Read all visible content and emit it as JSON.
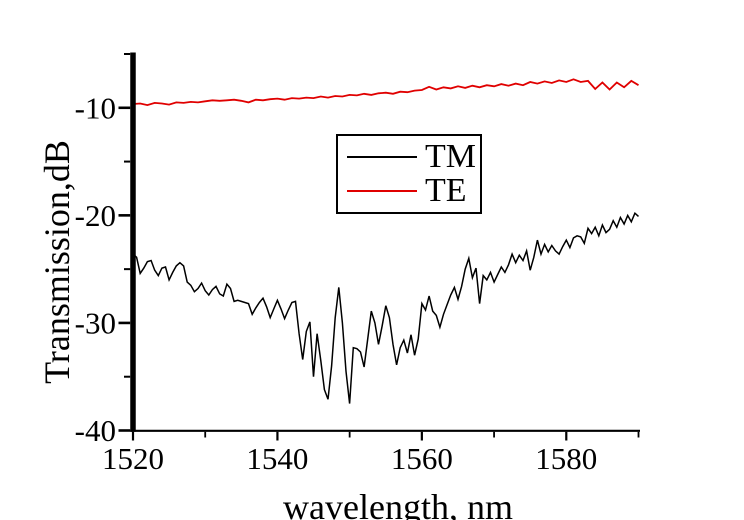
{
  "figure": {
    "background": "#ffffff",
    "axis_color": "#000000",
    "text_color": "#000000"
  },
  "chart_data": {
    "type": "line",
    "title": "",
    "xlabel": "wavelength, nm",
    "ylabel": "Transmission,dB",
    "xlim": [
      1520,
      1590
    ],
    "ylim": [
      -40,
      -5
    ],
    "grid": false,
    "x_major_ticks": [
      1520,
      1540,
      1560,
      1580
    ],
    "x_minor_ticks": [
      1530,
      1550,
      1570,
      1590
    ],
    "x_tick_labels": [
      "1520",
      "1540",
      "1560",
      "1580"
    ],
    "y_major_ticks": [
      -10,
      -20,
      -30,
      -40
    ],
    "y_minor_ticks": [
      -5,
      -15,
      -25,
      -35
    ],
    "y_tick_labels": [
      "-10",
      "-20",
      "-30",
      "-40"
    ],
    "legend": {
      "position": "inside-upper-middle",
      "border_color": "#000000",
      "entries": [
        "TM",
        "TE"
      ]
    },
    "series": [
      {
        "name": "TM",
        "color": "#000000",
        "x_start": 1520,
        "x_step": 0.5,
        "values": [
          -23.6,
          -23.9,
          -25.4,
          -24.9,
          -24.3,
          -24.2,
          -25.1,
          -25.6,
          -24.9,
          -24.8,
          -26.0,
          -25.3,
          -24.7,
          -24.4,
          -24.7,
          -26.2,
          -26.5,
          -27.1,
          -26.8,
          -26.3,
          -27.0,
          -27.4,
          -26.9,
          -26.6,
          -27.3,
          -27.5,
          -26.4,
          -26.8,
          -28.0,
          -27.9,
          -28.0,
          -28.1,
          -28.2,
          -29.2,
          -28.6,
          -28.1,
          -27.7,
          -28.5,
          -29.5,
          -28.7,
          -27.9,
          -28.7,
          -29.6,
          -28.8,
          -28.1,
          -28.0,
          -31.0,
          -33.4,
          -30.8,
          -29.9,
          -35.0,
          -31.0,
          -33.5,
          -36.2,
          -37.1,
          -34.0,
          -29.5,
          -26.7,
          -30.0,
          -34.5,
          -37.5,
          -32.3,
          -32.4,
          -32.7,
          -34.1,
          -31.5,
          -28.9,
          -30.0,
          -32.0,
          -30.3,
          -28.4,
          -29.5,
          -32.0,
          -33.9,
          -32.3,
          -31.6,
          -32.8,
          -31.1,
          -33.0,
          -31.5,
          -28.2,
          -28.8,
          -27.5,
          -28.9,
          -29.3,
          -30.4,
          -29.2,
          -28.3,
          -27.4,
          -26.7,
          -27.8,
          -26.6,
          -25.0,
          -24.0,
          -25.8,
          -24.9,
          -28.2,
          -25.6,
          -26.0,
          -25.3,
          -26.2,
          -25.5,
          -24.8,
          -25.3,
          -24.6,
          -23.6,
          -24.4,
          -23.7,
          -24.2,
          -23.3,
          -25.1,
          -23.9,
          -22.3,
          -23.6,
          -22.7,
          -23.4,
          -22.8,
          -23.3,
          -23.6,
          -22.9,
          -22.3,
          -23.0,
          -22.1,
          -21.9,
          -22.0,
          -22.6,
          -21.2,
          -21.7,
          -21.1,
          -21.9,
          -20.9,
          -21.6,
          -21.3,
          -20.5,
          -21.1,
          -20.2,
          -20.8,
          -20.0,
          -20.6,
          -19.8,
          -20.1
        ]
      },
      {
        "name": "TE",
        "color": "#e00000",
        "x_start": 1520,
        "x_step": 1.0,
        "values": [
          -9.65,
          -9.6,
          -9.75,
          -9.55,
          -9.6,
          -9.7,
          -9.5,
          -9.55,
          -9.45,
          -9.5,
          -9.4,
          -9.3,
          -9.35,
          -9.3,
          -9.25,
          -9.35,
          -9.5,
          -9.25,
          -9.3,
          -9.2,
          -9.15,
          -9.25,
          -9.1,
          -9.15,
          -9.05,
          -9.1,
          -8.95,
          -9.05,
          -8.9,
          -8.95,
          -8.8,
          -8.85,
          -8.7,
          -8.8,
          -8.65,
          -8.6,
          -8.7,
          -8.5,
          -8.55,
          -8.4,
          -8.35,
          -8.05,
          -8.3,
          -8.1,
          -8.2,
          -8.0,
          -8.15,
          -7.95,
          -8.1,
          -7.9,
          -8.0,
          -7.8,
          -7.95,
          -7.75,
          -7.9,
          -7.6,
          -7.75,
          -7.55,
          -7.7,
          -7.45,
          -7.6,
          -7.35,
          -7.6,
          -7.5,
          -8.25,
          -7.65,
          -8.3,
          -7.65,
          -8.1,
          -7.5,
          -7.9
        ]
      }
    ]
  }
}
